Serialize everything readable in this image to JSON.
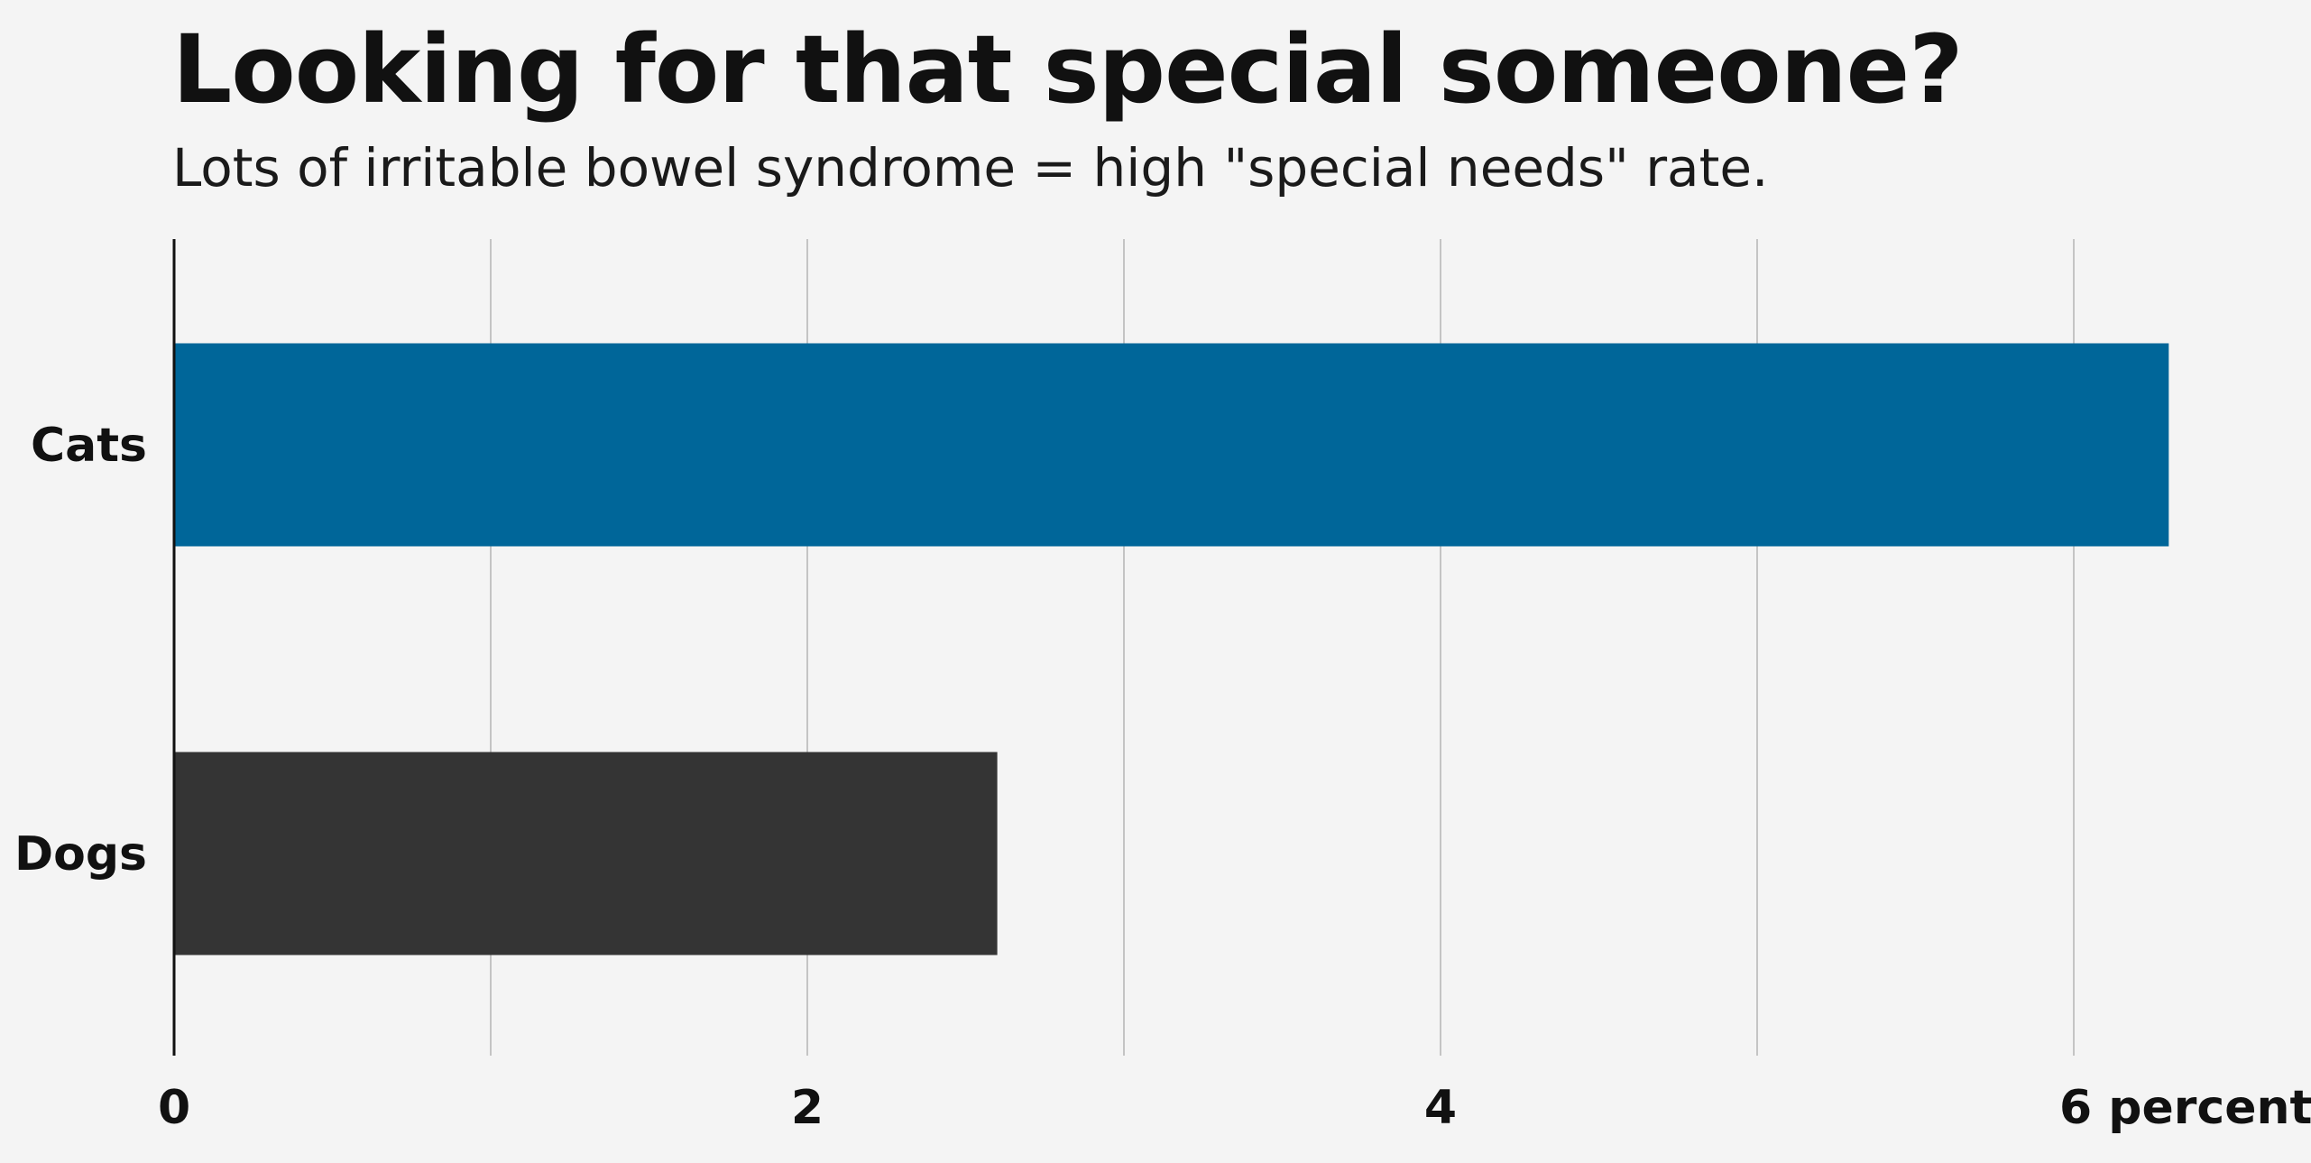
{
  "chart_data": {
    "type": "bar",
    "orientation": "horizontal",
    "title": "Looking for that special someone?",
    "subtitle": "Lots of irritable bowel syndrome = high \"special needs\" rate.",
    "categories": [
      "Cats",
      "Dogs"
    ],
    "values": [
      6.3,
      2.6
    ],
    "bar_colors": [
      "#006699",
      "#343434"
    ],
    "xlim": [
      0,
      6.5
    ],
    "x_ticks": [
      0,
      2,
      4,
      6
    ],
    "x_tick_labels": [
      "0",
      "2",
      "4",
      "6 percent"
    ],
    "grid": true,
    "gridline_every": 1,
    "grid_color": "#c4c4c4",
    "background": "#f4f4f4"
  }
}
